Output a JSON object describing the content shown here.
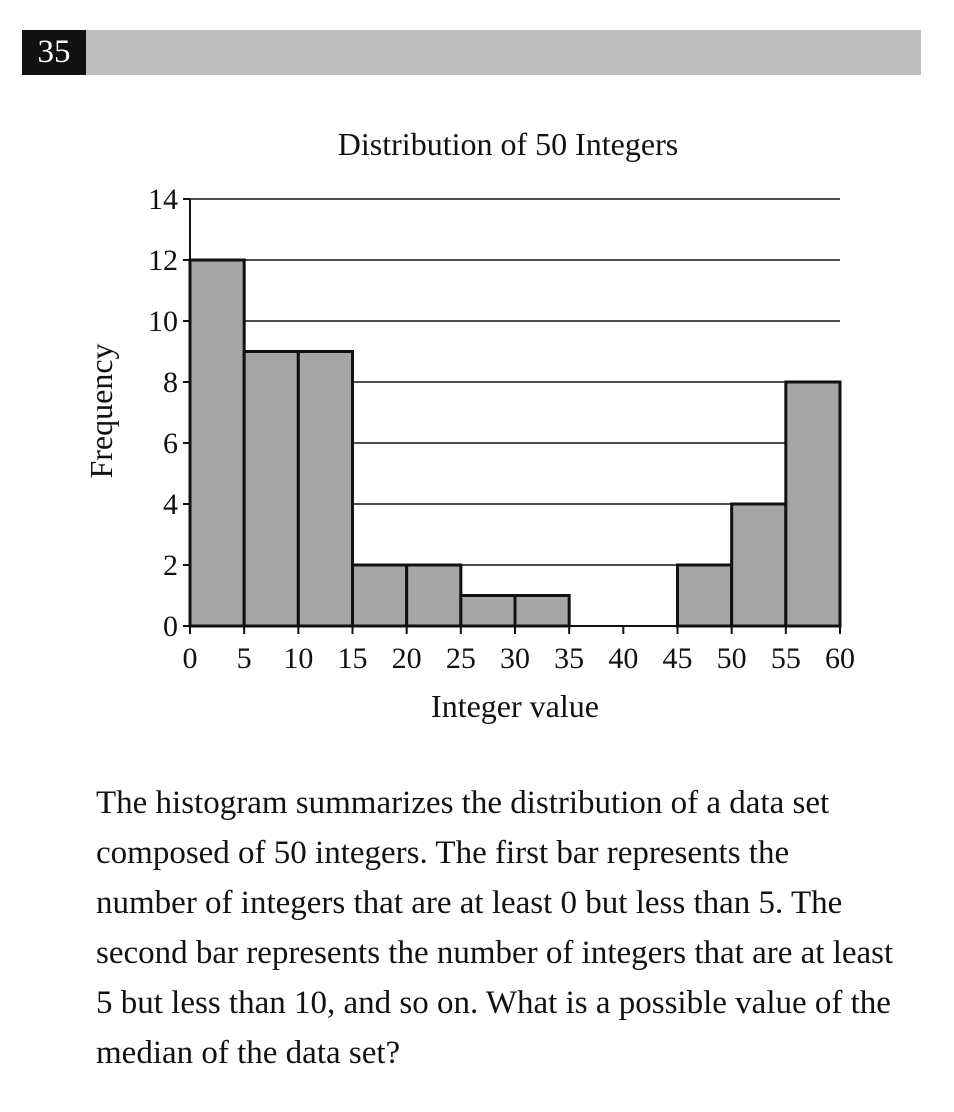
{
  "question": {
    "number": "35",
    "text": "The histogram summarizes the distribution of a data set composed of 50 integers. The first bar represents the number of integers that are at least 0 but less than 5. The second bar represents the number of integers that are at least 5 but less than 10, and so on. What is a possible value of the median of the data set?"
  },
  "chart_data": {
    "type": "bar",
    "title": "Distribution of 50 Integers",
    "xlabel": "Integer value",
    "ylabel": "Frequency",
    "bin_edges": [
      0,
      5,
      10,
      15,
      20,
      25,
      30,
      35,
      40,
      45,
      50,
      55,
      60
    ],
    "values": [
      12,
      9,
      9,
      2,
      2,
      1,
      1,
      0,
      0,
      2,
      4,
      8
    ],
    "xlim": [
      0,
      60
    ],
    "ylim": [
      0,
      14
    ],
    "xticks": [
      0,
      5,
      10,
      15,
      20,
      25,
      30,
      35,
      40,
      45,
      50,
      55,
      60
    ],
    "yticks": [
      0,
      2,
      4,
      6,
      8,
      10,
      12,
      14
    ],
    "grid": "horizontal",
    "colors": {
      "bar": "#a6a6a6",
      "outline": "#111111"
    }
  }
}
